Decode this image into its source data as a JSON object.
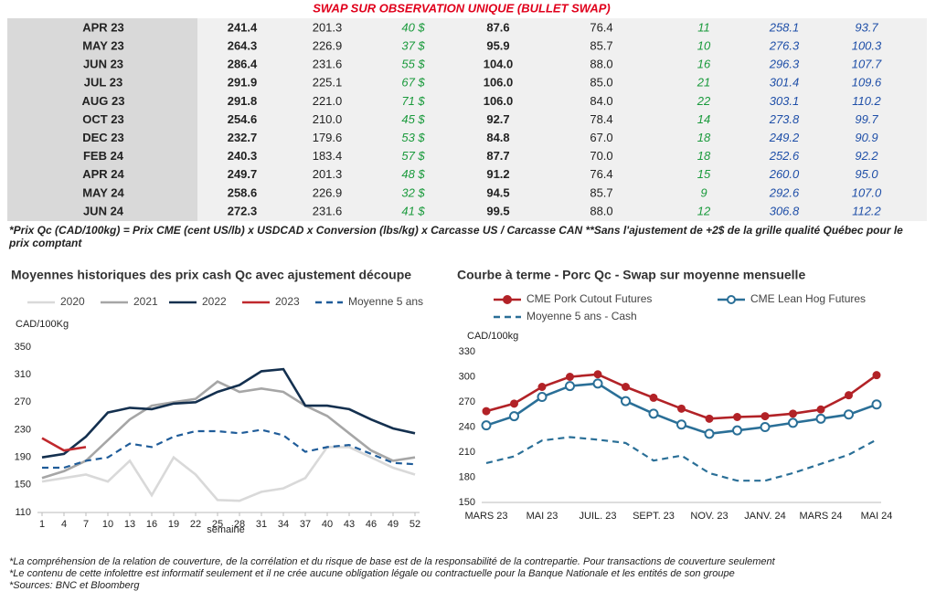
{
  "title": "SWAP SUR OBSERVATION UNIQUE (BULLET SWAP)",
  "table": {
    "rows": [
      [
        "APR 23",
        "241.4",
        "201.3",
        "40 $",
        "87.6",
        "76.4",
        "11",
        "258.1",
        "93.7"
      ],
      [
        "MAY 23",
        "264.3",
        "226.9",
        "37 $",
        "95.9",
        "85.7",
        "10",
        "276.3",
        "100.3"
      ],
      [
        "JUN 23",
        "286.4",
        "231.6",
        "55 $",
        "104.0",
        "88.0",
        "16",
        "296.3",
        "107.7"
      ],
      [
        "JUL 23",
        "291.9",
        "225.1",
        "67 $",
        "106.0",
        "85.0",
        "21",
        "301.4",
        "109.6"
      ],
      [
        "AUG 23",
        "291.8",
        "221.0",
        "71 $",
        "106.0",
        "84.0",
        "22",
        "303.1",
        "110.2"
      ],
      [
        "OCT 23",
        "254.6",
        "210.0",
        "45 $",
        "92.7",
        "78.4",
        "14",
        "273.8",
        "99.7"
      ],
      [
        "DEC 23",
        "232.7",
        "179.6",
        "53 $",
        "84.8",
        "67.0",
        "18",
        "249.2",
        "90.9"
      ],
      [
        "FEB 24",
        "240.3",
        "183.4",
        "57 $",
        "87.7",
        "70.0",
        "18",
        "252.6",
        "92.2"
      ],
      [
        "APR 24",
        "249.7",
        "201.3",
        "48 $",
        "91.2",
        "76.4",
        "15",
        "260.0",
        "95.0"
      ],
      [
        "MAY 24",
        "258.6",
        "226.9",
        "32 $",
        "94.5",
        "85.7",
        "9",
        "292.6",
        "107.0"
      ],
      [
        "JUN 24",
        "272.3",
        "231.6",
        "41 $",
        "99.5",
        "88.0",
        "12",
        "306.8",
        "112.2"
      ]
    ]
  },
  "note": "*Prix Qc (CAD/100kg) = Prix CME (cent US/lb) x USDCAD x Conversion (lbs/kg) x Carcasse US / Carcasse CAN **Sans l'ajustement de +2$ de la grille qualité Québec pour le prix comptant",
  "chart_data": [
    {
      "type": "line",
      "title": "Moyennes historiques des prix cash Qc avec ajustement découpe",
      "y_label": "CAD/100Kg",
      "x_label": "semaine",
      "x": [
        1,
        4,
        7,
        10,
        13,
        16,
        19,
        22,
        25,
        28,
        31,
        34,
        37,
        40,
        43,
        46,
        49,
        52
      ],
      "series": [
        {
          "name": "2020",
          "color": "#d9d9d9",
          "values": [
            155,
            160,
            165,
            155,
            185,
            135,
            190,
            165,
            128,
            127,
            140,
            145,
            160,
            205,
            205,
            190,
            175,
            165
          ]
        },
        {
          "name": "2021",
          "color": "#a6a6a6",
          "values": [
            160,
            170,
            185,
            215,
            245,
            265,
            270,
            275,
            300,
            285,
            290,
            285,
            265,
            250,
            225,
            200,
            185,
            190
          ]
        },
        {
          "name": "2022",
          "color": "#14304f",
          "values": [
            190,
            195,
            220,
            255,
            262,
            260,
            268,
            270,
            285,
            295,
            315,
            318,
            265,
            265,
            260,
            245,
            232,
            225
          ]
        },
        {
          "name": "2023",
          "color": "#c0282d",
          "values": [
            218,
            200,
            205,
            null,
            null,
            null,
            null,
            null,
            null,
            null,
            null,
            null,
            null,
            null,
            null,
            null,
            null,
            null
          ]
        },
        {
          "name": "Moyenne 5 ans",
          "color": "#1f5c99",
          "dash": true,
          "values": [
            175,
            175,
            185,
            190,
            210,
            205,
            220,
            228,
            228,
            225,
            230,
            222,
            198,
            205,
            208,
            195,
            182,
            180
          ]
        }
      ],
      "xlim": [
        1,
        52
      ],
      "xticks": [
        1,
        4,
        7,
        10,
        13,
        16,
        19,
        22,
        25,
        28,
        31,
        34,
        37,
        40,
        43,
        46,
        49,
        52
      ],
      "ylim": [
        110,
        350
      ],
      "yticks": [
        110,
        150,
        190,
        230,
        270,
        310,
        350
      ],
      "grid": false,
      "legend": "top"
    },
    {
      "type": "line",
      "title": "Courbe à terme - Porc Qc - Swap sur moyenne mensuelle",
      "y_label": "CAD/100kg",
      "categories": [
        "MARS 23",
        null,
        "MAI 23",
        null,
        "JUIL. 23",
        null,
        "SEPT. 23",
        null,
        "NOV. 23",
        null,
        "JANV. 24",
        null,
        "MARS 24",
        null,
        "MAI 24"
      ],
      "series": [
        {
          "name": "CME Pork Cutout Futures",
          "color": "#b22227",
          "marker": "filled",
          "values": [
            259,
            268,
            288,
            300,
            303,
            288,
            275,
            262,
            250,
            252,
            253,
            256,
            261,
            278,
            302
          ]
        },
        {
          "name": "CME Lean Hog Futures",
          "color": "#2a6f97",
          "marker": "hollow",
          "values": [
            242,
            253,
            276,
            289,
            292,
            271,
            256,
            243,
            232,
            236,
            240,
            245,
            250,
            255,
            267
          ]
        },
        {
          "name": "Moyenne 5 ans - Cash",
          "color": "#2a6f97",
          "dash": true,
          "values": [
            197,
            205,
            224,
            228,
            225,
            221,
            200,
            206,
            185,
            176,
            176,
            185,
            196,
            207,
            225
          ]
        }
      ],
      "ylim": [
        150,
        330
      ],
      "yticks": [
        150,
        180,
        210,
        240,
        270,
        300,
        330
      ],
      "grid": false,
      "legend": "top"
    }
  ],
  "footer": [
    "*La compréhension de la relation de couverture, de la corrélation et du risque de base est de la responsabilité de la contrepartie. Pour transactions de couverture seulement",
    "*Le contenu de cette infolettre est informatif seulement et il ne crée aucune obligation légale ou contractuelle pour la Banque Nationale et les entités de son groupe",
    "*Sources: BNC et Bloomberg"
  ]
}
